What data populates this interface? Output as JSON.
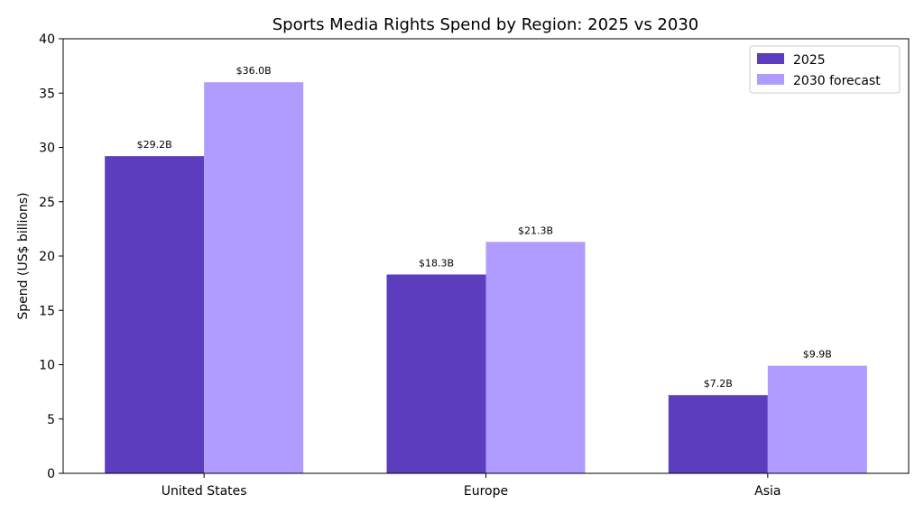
{
  "chart_data": {
    "type": "bar",
    "title": "Sports Media Rights Spend by Region: 2025 vs 2030",
    "xlabel": "",
    "ylabel": "Spend (US$ billions)",
    "categories": [
      "United States",
      "Europe",
      "Asia"
    ],
    "ylim": [
      0,
      40
    ],
    "yticks": [
      0,
      5,
      10,
      15,
      20,
      25,
      30,
      35,
      40
    ],
    "series": [
      {
        "name": "2025",
        "color": "#5b3dbd",
        "values": [
          29.2,
          18.3,
          7.2
        ],
        "labels": [
          "$29.2B",
          "$18.3B",
          "$7.2B"
        ]
      },
      {
        "name": "2030 forecast",
        "color": "#b09cff",
        "values": [
          36.0,
          21.3,
          9.9
        ],
        "labels": [
          "$36.0B",
          "$21.3B",
          "$9.9B"
        ]
      }
    ],
    "legend_position": "top-right",
    "grid": false
  }
}
